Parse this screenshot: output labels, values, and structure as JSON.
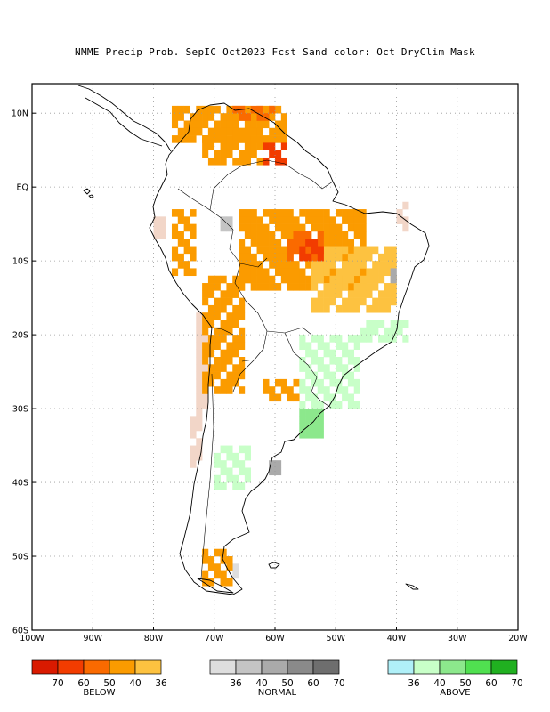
{
  "title": "NMME Precip Prob. SepIC  Oct2023 Fcst  Sand color: Oct DryClim Mask",
  "map": {
    "lon_range": [
      -100,
      -20
    ],
    "lat_range": [
      -60,
      14
    ],
    "lat_ticks": [
      "10N",
      "EQ",
      "10S",
      "20S",
      "30S",
      "40S",
      "50S",
      "60S"
    ],
    "lon_ticks": [
      "100W",
      "90W",
      "80W",
      "70W",
      "60W",
      "50W",
      "40W",
      "30W",
      "20W"
    ],
    "gridlines": "dotted",
    "colors": {
      "dry_mask": "#f2d6c8",
      "below": [
        "#d91a00",
        "#f23c00",
        "#fa6a00",
        "#fb9b00",
        "#fdc240"
      ],
      "normal": [
        "#dedede",
        "#c4c4c4",
        "#aaaaaa",
        "#8a8a8a",
        "#6e6e6e"
      ],
      "above": [
        "#b0f0f8",
        "#c8ffc8",
        "#8ce88c",
        "#50e050",
        "#20b020"
      ]
    }
  },
  "legend": {
    "below": {
      "label": "BELOW",
      "ticks": [
        "70",
        "60",
        "50",
        "40",
        "36"
      ]
    },
    "normal": {
      "label": "NORMAL",
      "ticks": [
        "36",
        "40",
        "50",
        "60",
        "70"
      ]
    },
    "above": {
      "label": "ABOVE",
      "ticks": [
        "36",
        "40",
        "50",
        "60",
        "70"
      ]
    }
  }
}
